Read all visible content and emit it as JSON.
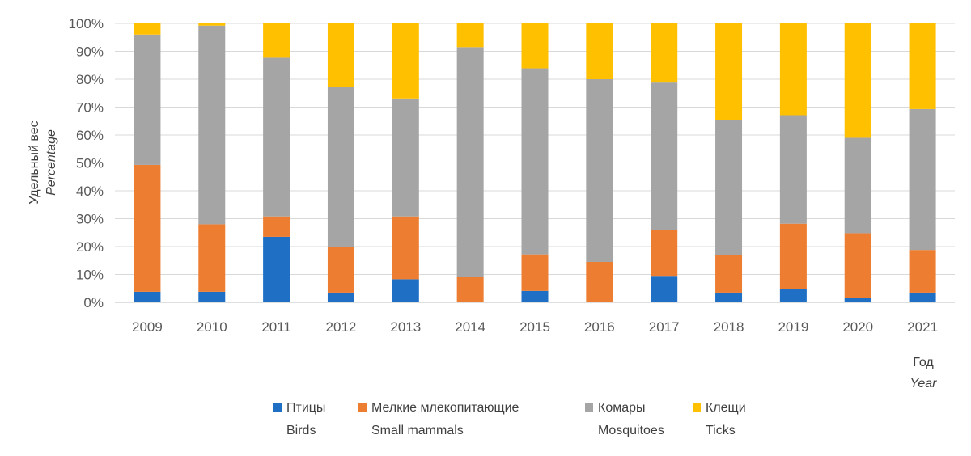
{
  "chart_data": {
    "type": "bar",
    "stacked": true,
    "percent_stacked": true,
    "categories": [
      "2009",
      "2010",
      "2011",
      "2012",
      "2013",
      "2014",
      "2015",
      "2016",
      "2017",
      "2018",
      "2019",
      "2020",
      "2021"
    ],
    "series": [
      {
        "name": "Птицы",
        "name_en": "Birds",
        "color": "#1f6fc5",
        "values": [
          3.8,
          3.8,
          23.5,
          3.5,
          8.3,
          0,
          4.1,
          0,
          9.5,
          3.5,
          4.9,
          1.6,
          3.5
        ]
      },
      {
        "name": "Мелкие млекопитающие",
        "name_en": "Small mammals",
        "color": "#ed7d31",
        "values": [
          45.5,
          24.2,
          7.3,
          16.5,
          22.5,
          9.2,
          13.1,
          14.5,
          16.5,
          13.6,
          23.3,
          23.2,
          15.3
        ]
      },
      {
        "name": "Комары",
        "name_en": "Mosquitoes",
        "color": "#a5a5a5",
        "values": [
          46.7,
          71.2,
          56.9,
          57.2,
          42.3,
          82.3,
          66.7,
          65.5,
          52.8,
          48.3,
          38.9,
          34.2,
          50.5
        ]
      },
      {
        "name": "Клещи",
        "name_en": "Ticks",
        "color": "#ffc000",
        "values": [
          4.0,
          0.8,
          12.3,
          22.8,
          26.9,
          8.5,
          16.1,
          20.0,
          21.2,
          34.6,
          32.9,
          41.0,
          30.7
        ]
      }
    ],
    "yticks": [
      "0%",
      "10%",
      "20%",
      "30%",
      "40%",
      "50%",
      "60%",
      "70%",
      "80%",
      "90%",
      "100%"
    ],
    "ylim": [
      0,
      100
    ],
    "ylabel": "Удельный вес",
    "ylabel_en": "Percentage",
    "xlabel": "Год",
    "xlabel_en": "Year",
    "grid": true,
    "legend_position": "bottom"
  }
}
